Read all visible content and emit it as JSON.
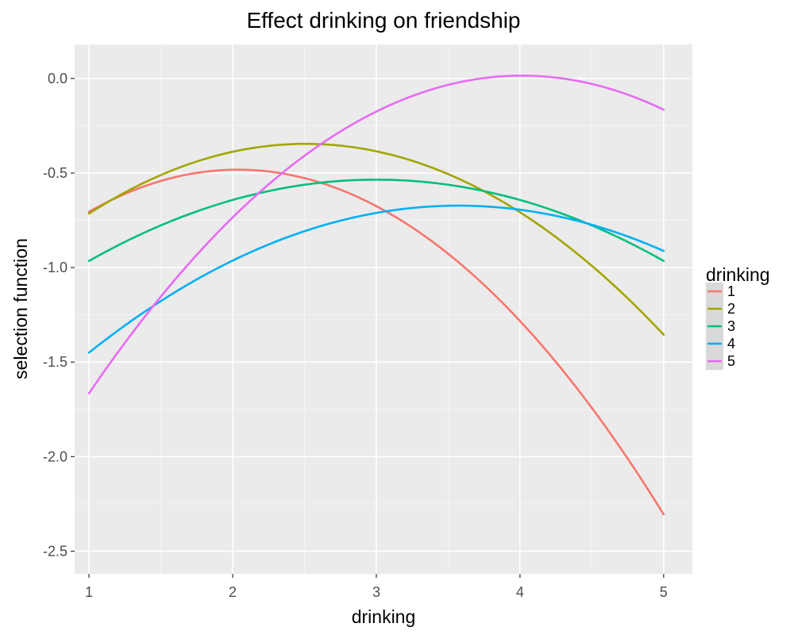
{
  "chart_data": {
    "type": "line",
    "title": "Effect drinking on friendship",
    "xlabel": "drinking",
    "ylabel": "selection function",
    "xlim": [
      0.9,
      5.2
    ],
    "ylim": [
      -2.62,
      0.18
    ],
    "xticks": [
      1,
      2,
      3,
      4,
      5
    ],
    "xtick_labels": [
      "1",
      "2",
      "3",
      "4",
      "5"
    ],
    "yticks": [
      0.0,
      -0.5,
      -1.0,
      -1.5,
      -2.0,
      -2.5
    ],
    "ytick_labels": [
      "0.0",
      "-0.5",
      "-1.0",
      "-1.5",
      "-2.0",
      "-2.5"
    ],
    "grid": true,
    "legend": {
      "title": "drinking",
      "placement": "right"
    },
    "series": [
      {
        "name": "1",
        "color": "#F8766D",
        "coefficients": [
          -0.2075,
          0.845,
          -1.3425
        ]
      },
      {
        "name": "2",
        "color": "#A3A500",
        "coefficients": [
          -0.1625,
          0.815,
          -1.3675
        ]
      },
      {
        "name": "3",
        "color": "#00BF7D",
        "coefficients": [
          -0.1075,
          0.645,
          -1.5025
        ]
      },
      {
        "name": "4",
        "color": "#00B0F6",
        "coefficients": [
          -0.1175,
          0.8395,
          -2.172
        ]
      },
      {
        "name": "5",
        "color": "#E76BF3",
        "coefficients": [
          -0.185,
          1.485,
          -2.965
        ]
      }
    ]
  }
}
